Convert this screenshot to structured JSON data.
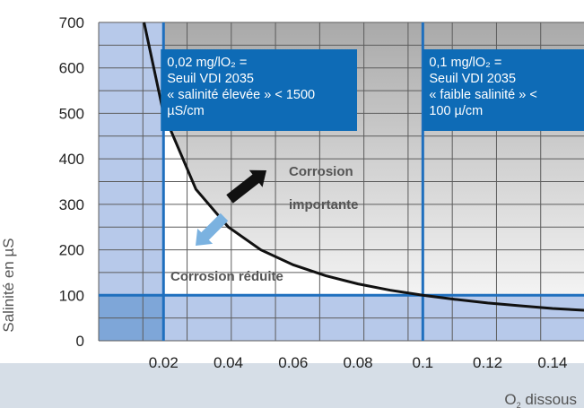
{
  "colors": {
    "page_background": "#ffffff",
    "bottom_band": "#d6dee7",
    "low_zone_fill": "#b7c9ea",
    "corner_fill": "#7ea6d8",
    "threshold_line": "#1f6fbe",
    "annotation_box": "#0e6bb6",
    "curve": "#111111",
    "arrow_high": "#111111",
    "arrow_low": "#7bb2e0"
  },
  "chart_data": {
    "type": "line",
    "xlim": [
      0.0,
      0.15
    ],
    "ylim": [
      0,
      700
    ],
    "x_ticks": [
      "0.02",
      "0.04",
      "0.06",
      "0.08",
      "0.1",
      "0.12",
      "0.14"
    ],
    "y_ticks": [
      "0",
      "100",
      "200",
      "300",
      "400",
      "500",
      "600",
      "700"
    ],
    "ylabel": "Salinité en µS",
    "xlabel": {
      "main": "O",
      "sub": "2",
      "rest": " dissous"
    },
    "grid": true,
    "series": [
      {
        "points": [
          [
            0.014,
            700
          ],
          [
            0.02,
            500
          ],
          [
            0.03,
            333
          ],
          [
            0.04,
            250
          ],
          [
            0.05,
            200
          ],
          [
            0.06,
            167
          ],
          [
            0.07,
            143
          ],
          [
            0.08,
            125
          ],
          [
            0.09,
            111
          ],
          [
            0.1,
            100
          ],
          [
            0.11,
            91
          ],
          [
            0.12,
            83
          ],
          [
            0.13,
            77
          ],
          [
            0.14,
            71
          ],
          [
            0.15,
            67
          ]
        ]
      }
    ],
    "thresholds": {
      "x_lines": [
        0.02,
        0.1
      ],
      "y_line": 100
    },
    "annotations": {
      "vdi_high": [
        "0,02 mg/lO₂ =",
        "Seuil VDI 2035",
        "« salinité élevée » < 1500",
        "µS/cm"
      ],
      "vdi_low": [
        "0,1 mg/lO₂ =",
        "Seuil VDI 2035",
        "« faible salinité » <",
        "100 µ/cm"
      ],
      "zone_high": [
        "Corrosion",
        "importante"
      ],
      "zone_low": "Corrosion réduite"
    }
  }
}
